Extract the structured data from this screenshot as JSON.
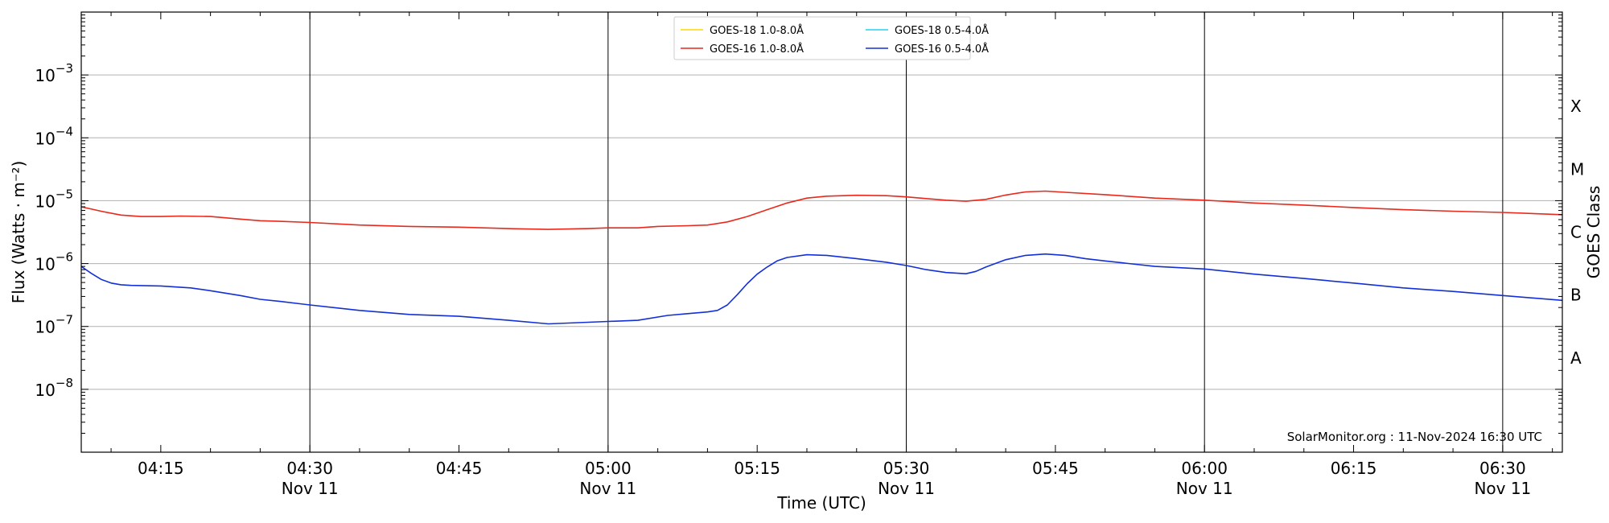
{
  "chart_data": {
    "type": "line",
    "xlabel": "Time (UTC)",
    "ylabel": "Flux (Watts · m⁻²)",
    "y2label": "GOES Class",
    "yscale": "log",
    "xlim": [
      "04:07",
      "06:36"
    ],
    "ylim": [
      1e-09,
      0.01
    ],
    "grid": "horizontal",
    "legend_position": "top-center",
    "annotation": "SolarMonitor.org : 11-Nov-2024 16:30 UTC",
    "y_ticks": [
      {
        "value": 1e-08,
        "base": "10",
        "exp": "−8"
      },
      {
        "value": 1e-07,
        "base": "10",
        "exp": "−7"
      },
      {
        "value": 1e-06,
        "base": "10",
        "exp": "−6"
      },
      {
        "value": 1e-05,
        "base": "10",
        "exp": "−5"
      },
      {
        "value": 0.0001,
        "base": "10",
        "exp": "−4"
      },
      {
        "value": 0.001,
        "base": "10",
        "exp": "−3"
      }
    ],
    "x_ticks": [
      {
        "time": "04:15",
        "label": "04:15",
        "date": ""
      },
      {
        "time": "04:30",
        "label": "04:30",
        "date": "Nov 11"
      },
      {
        "time": "04:45",
        "label": "04:45",
        "date": ""
      },
      {
        "time": "05:00",
        "label": "05:00",
        "date": "Nov 11"
      },
      {
        "time": "05:15",
        "label": "05:15",
        "date": ""
      },
      {
        "time": "05:30",
        "label": "05:30",
        "date": "Nov 11"
      },
      {
        "time": "05:45",
        "label": "05:45",
        "date": ""
      },
      {
        "time": "06:00",
        "label": "06:00",
        "date": "Nov 11"
      },
      {
        "time": "06:15",
        "label": "06:15",
        "date": ""
      },
      {
        "time": "06:30",
        "label": "06:30",
        "date": "Nov 11"
      }
    ],
    "vlines": [
      "04:30",
      "05:00",
      "05:30",
      "06:00",
      "06:30"
    ],
    "class_labels": [
      {
        "label": "A",
        "value": 3.16e-08
      },
      {
        "label": "B",
        "value": 3.16e-07
      },
      {
        "label": "C",
        "value": 3.16e-06
      },
      {
        "label": "M",
        "value": 3.16e-05
      },
      {
        "label": "X",
        "value": 0.000316
      }
    ],
    "series": [
      {
        "name": "GOES-18 1.0-8.0Å",
        "color": "#ffd700",
        "x": [],
        "y": []
      },
      {
        "name": "GOES-16 1.0-8.0Å",
        "color": "#e8291c",
        "x": [
          "04:07",
          "04:09",
          "04:11",
          "04:13",
          "04:15",
          "04:17",
          "04:20",
          "04:23",
          "04:25",
          "04:27",
          "04:30",
          "04:35",
          "04:40",
          "04:45",
          "04:50",
          "04:54",
          "04:58",
          "05:00",
          "05:03",
          "05:05",
          "05:08",
          "05:10",
          "05:12",
          "05:14",
          "05:16",
          "05:18",
          "05:20",
          "05:22",
          "05:25",
          "05:28",
          "05:30",
          "05:32",
          "05:34",
          "05:36",
          "05:38",
          "05:40",
          "05:42",
          "05:44",
          "05:46",
          "05:50",
          "05:55",
          "06:00",
          "06:05",
          "06:10",
          "06:15",
          "06:20",
          "06:25",
          "06:30",
          "06:36"
        ],
        "y": [
          8e-06,
          6.8e-06,
          5.9e-06,
          5.6e-06,
          5.6e-06,
          5.7e-06,
          5.6e-06,
          5.1e-06,
          4.8e-06,
          4.7e-06,
          4.5e-06,
          4.1e-06,
          3.9e-06,
          3.8e-06,
          3.6e-06,
          3.5e-06,
          3.6e-06,
          3.7e-06,
          3.7e-06,
          3.9e-06,
          4e-06,
          4.1e-06,
          4.6e-06,
          5.6e-06,
          7.2e-06,
          9.2e-06,
          1.1e-05,
          1.18e-05,
          1.22e-05,
          1.2e-05,
          1.15e-05,
          1.08e-05,
          1.02e-05,
          9.8e-06,
          1.05e-05,
          1.23e-05,
          1.38e-05,
          1.42e-05,
          1.36e-05,
          1.25e-05,
          1.1e-05,
          1.02e-05,
          9.2e-06,
          8.5e-06,
          7.8e-06,
          7.2e-06,
          6.8e-06,
          6.5e-06,
          6e-06
        ]
      },
      {
        "name": "GOES-18 0.5-4.0Å",
        "color": "#22d3ee",
        "x": [],
        "y": []
      },
      {
        "name": "GOES-16 0.5-4.0Å",
        "color": "#1330d6",
        "x": [
          "04:07",
          "04:08",
          "04:09",
          "04:10",
          "04:11",
          "04:12",
          "04:15",
          "04:18",
          "04:20",
          "04:23",
          "04:25",
          "04:27",
          "04:30",
          "04:35",
          "04:40",
          "04:45",
          "04:50",
          "04:54",
          "04:57",
          "05:00",
          "05:03",
          "05:06",
          "05:08",
          "05:10",
          "05:11",
          "05:12",
          "05:13",
          "05:14",
          "05:15",
          "05:16",
          "05:17",
          "05:18",
          "05:20",
          "05:22",
          "05:25",
          "05:28",
          "05:30",
          "05:32",
          "05:34",
          "05:36",
          "05:37",
          "05:38",
          "05:40",
          "05:42",
          "05:44",
          "05:46",
          "05:48",
          "05:50",
          "05:55",
          "06:00",
          "06:05",
          "06:10",
          "06:15",
          "06:20",
          "06:25",
          "06:30",
          "06:36"
        ],
        "y": [
          9e-07,
          7e-07,
          5.6e-07,
          4.9e-07,
          4.6e-07,
          4.5e-07,
          4.4e-07,
          4.1e-07,
          3.7e-07,
          3.1e-07,
          2.7e-07,
          2.5e-07,
          2.2e-07,
          1.8e-07,
          1.55e-07,
          1.45e-07,
          1.25e-07,
          1.1e-07,
          1.15e-07,
          1.2e-07,
          1.25e-07,
          1.5e-07,
          1.6e-07,
          1.7e-07,
          1.8e-07,
          2.2e-07,
          3.2e-07,
          4.8e-07,
          6.8e-07,
          8.8e-07,
          1.1e-06,
          1.25e-06,
          1.38e-06,
          1.35e-06,
          1.2e-06,
          1.05e-06,
          9.3e-07,
          8e-07,
          7.2e-07,
          6.9e-07,
          7.5e-07,
          8.8e-07,
          1.15e-06,
          1.35e-06,
          1.42e-06,
          1.35e-06,
          1.2e-06,
          1.1e-06,
          9e-07,
          8.2e-07,
          6.8e-07,
          5.8e-07,
          4.9e-07,
          4.1e-07,
          3.6e-07,
          3.1e-07,
          2.6e-07
        ]
      }
    ]
  }
}
